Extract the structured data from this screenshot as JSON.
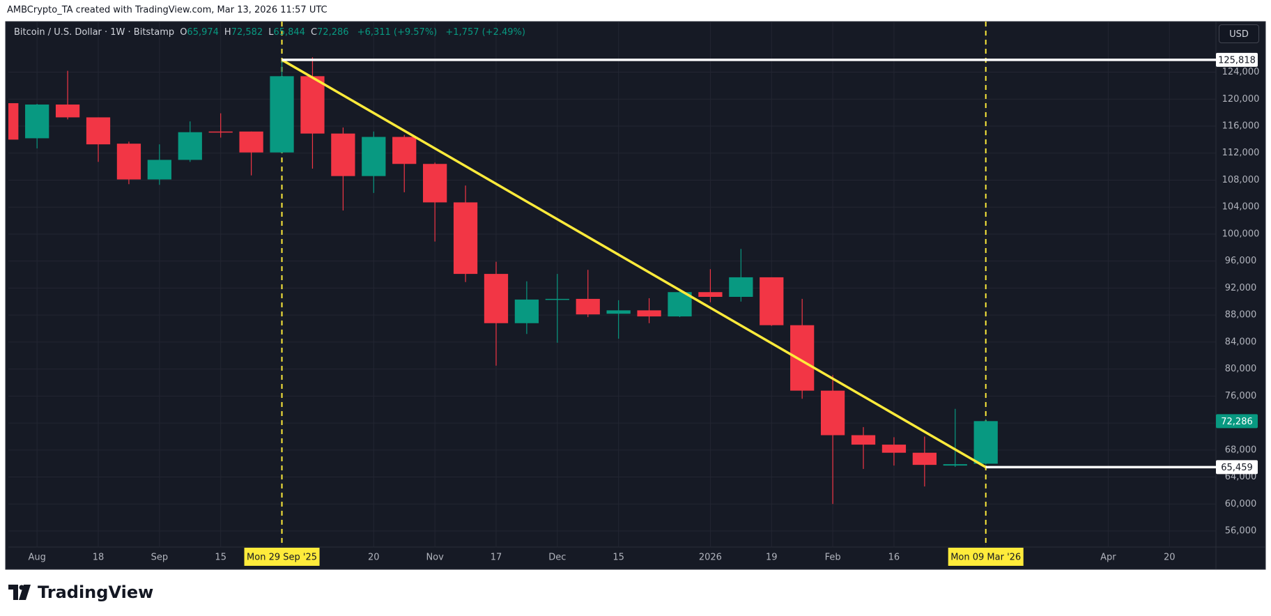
{
  "attribution": "AMBCrypto_TA created with TradingView.com, Mar 13, 2026 11:57 UTC",
  "legend": {
    "symbol": "Bitcoin / U.S. Dollar · 1W · Bitstamp",
    "ohlc": [
      {
        "key": "O",
        "value": "65,974"
      },
      {
        "key": "H",
        "value": "72,582"
      },
      {
        "key": "L",
        "value": "65,844"
      },
      {
        "key": "C",
        "value": "72,286"
      }
    ],
    "change": "+6,311 (+9.57%)",
    "change_2": "+1,757 (+2.49%)"
  },
  "currency_button": "USD",
  "logo": "TradingView",
  "chart_data": {
    "type": "candlestick",
    "categories": [
      null,
      "Aug",
      null,
      "18",
      null,
      "Sep",
      null,
      "15",
      null,
      "Mon 29 Sep '25",
      null,
      null,
      "20",
      null,
      "Nov",
      null,
      "17",
      null,
      "Dec",
      null,
      "15",
      null,
      null,
      "2026",
      null,
      "19",
      null,
      "Feb",
      null,
      "16",
      null,
      null,
      "Mon 09 Mar '26",
      null,
      null,
      null,
      "Apr",
      null,
      "20",
      null
    ],
    "open": [
      119400,
      114200,
      119200,
      117300,
      113400,
      108100,
      111000,
      115200,
      115200,
      112100,
      123400,
      114900,
      108600,
      114400,
      110400,
      104700,
      94100,
      86800,
      90300,
      90400,
      88200,
      88700,
      87800,
      91400,
      90700,
      93600,
      86500,
      76800,
      70200,
      68800,
      67600,
      65700,
      65974,
      null,
      null,
      null,
      null,
      null,
      null,
      null
    ],
    "high": [
      119500,
      119300,
      124200,
      117300,
      113700,
      113300,
      116700,
      117900,
      115200,
      125800,
      126200,
      115800,
      115200,
      114700,
      110600,
      107200,
      95900,
      93000,
      94100,
      94700,
      90200,
      90500,
      91900,
      94800,
      97800,
      93600,
      90400,
      79100,
      71400,
      69900,
      70000,
      74100,
      72582,
      null,
      null,
      null,
      null,
      null,
      null,
      null
    ],
    "low": [
      113700,
      112700,
      117000,
      110700,
      107400,
      107300,
      110700,
      114300,
      108700,
      112000,
      109700,
      103500,
      106100,
      106200,
      98900,
      92900,
      80500,
      85200,
      83900,
      87700,
      84500,
      86800,
      87700,
      89900,
      90000,
      86400,
      75600,
      60000,
      65200,
      65700,
      62600,
      65500,
      65844,
      null,
      null,
      null,
      null,
      null,
      null,
      null
    ],
    "close": [
      114000,
      119200,
      117300,
      113300,
      108100,
      111000,
      115100,
      115100,
      112100,
      123400,
      114900,
      108600,
      114400,
      110400,
      104700,
      94100,
      86800,
      90300,
      90400,
      88100,
      88700,
      87800,
      91400,
      90700,
      93600,
      86500,
      76800,
      70200,
      68800,
      67600,
      65800,
      65900,
      72286,
      null,
      null,
      null,
      null,
      null,
      null,
      null
    ],
    "up_color": "#089981",
    "down_color": "#f23645",
    "ylim": [
      54000,
      128000
    ],
    "yticks": [
      {
        "value": 56000,
        "label": "56,000"
      },
      {
        "value": 60000,
        "label": "60,000"
      },
      {
        "value": 64000,
        "label": "64,000"
      },
      {
        "value": 68000,
        "label": "68,000"
      },
      {
        "value": 72000,
        "label": "72,000"
      },
      {
        "value": 76000,
        "label": "76,000"
      },
      {
        "value": 80000,
        "label": "80,000"
      },
      {
        "value": 84000,
        "label": "84,000"
      },
      {
        "value": 88000,
        "label": "88,000"
      },
      {
        "value": 92000,
        "label": "92,000"
      },
      {
        "value": 96000,
        "label": "96,000"
      },
      {
        "value": 100000,
        "label": "100,000"
      },
      {
        "value": 104000,
        "label": "104,000"
      },
      {
        "value": 108000,
        "label": "108,000"
      },
      {
        "value": 112000,
        "label": "112,000"
      },
      {
        "value": 116000,
        "label": "116,000"
      },
      {
        "value": 120000,
        "label": "120,000"
      },
      {
        "value": 124000,
        "label": "124,000"
      }
    ],
    "grid": true,
    "vlines": [
      "Mon 29 Sep '25",
      "Mon 09 Mar '26"
    ],
    "vline_color": "#ffeb3b",
    "hlines": [
      {
        "value": 125818,
        "label": "125,818",
        "from": "Mon 29 Sep '25"
      },
      {
        "value": 65459,
        "label": "65,459",
        "from": "Mon 09 Mar '26"
      }
    ],
    "trendline": {
      "from": {
        "x": "Mon 29 Sep '25",
        "y": 125818
      },
      "to": {
        "x": "Mon 09 Mar '26",
        "y": 65459
      },
      "color": "#ffeb3b"
    },
    "last_price": {
      "value": 72286,
      "label": "72,286"
    }
  }
}
